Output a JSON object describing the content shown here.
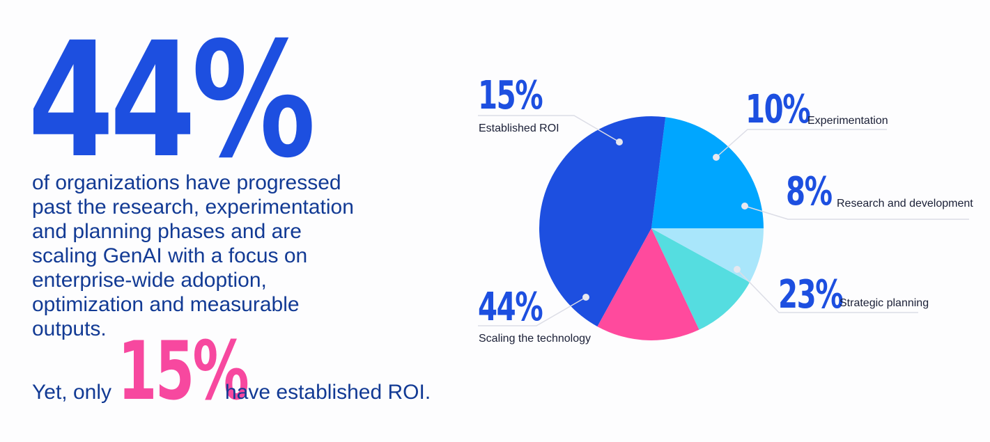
{
  "headline": {
    "stat": "44%",
    "description": "of organizations have progressed past the research, experimentation and planning phases and are scaling GenAI with a focus on enterprise-wide adoption, optimization and measurable outputs."
  },
  "roi_note": {
    "prefix": "Yet, only",
    "stat": "15%",
    "suffix": "have established ROI."
  },
  "colors": {
    "stat_blue": "#1d4fe0",
    "stat_pink": "#f7489f",
    "body_text": "#123a94"
  },
  "chart_data": {
    "type": "pie",
    "unit": "%",
    "start_angle_deg": 0,
    "direction": "counterclockwise",
    "slices": [
      {
        "label": "Strategic planning",
        "value": 23,
        "value_label": "23%",
        "color": "#00a6ff"
      },
      {
        "label": "Scaling the technology",
        "value": 44,
        "value_label": "44%",
        "color": "#1d4fe0"
      },
      {
        "label": "Established ROI",
        "value": 15,
        "value_label": "15%",
        "color": "#ff4a9d"
      },
      {
        "label": "Experimentation",
        "value": 10,
        "value_label": "10%",
        "color": "#55dde0"
      },
      {
        "label": "Research and development",
        "value": 8,
        "value_label": "8%",
        "color": "#a9e6fb"
      }
    ]
  }
}
